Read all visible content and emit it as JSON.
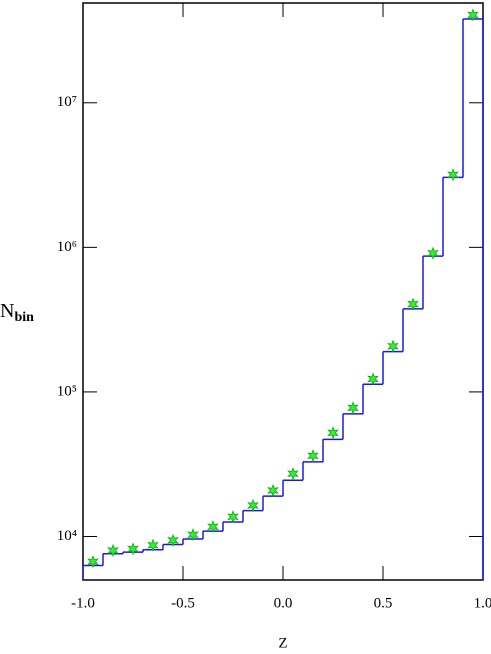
{
  "chart_data": {
    "type": "histogram",
    "xlabel": "Z",
    "ylabel_main": "N",
    "ylabel_sub": "bin",
    "log_y": true,
    "xlim": [
      -1.0,
      1.0
    ],
    "xticks": [
      {
        "value": -1.0,
        "label": "-1.0"
      },
      {
        "value": -0.5,
        "label": "-0.5"
      },
      {
        "value": 0,
        "label": "0.0"
      },
      {
        "value": 0.5,
        "label": "0.5"
      },
      {
        "value": 1.0,
        "label": "1.0"
      }
    ],
    "ylim": [
      5000,
      49000000
    ],
    "yticks": [
      {
        "value": 10000,
        "label": "10⁴"
      },
      {
        "value": 100000,
        "label": "10⁵"
      },
      {
        "value": 1000000,
        "label": "10⁶"
      },
      {
        "value": 10000000,
        "label": "10⁷"
      }
    ],
    "bins": [
      -1.0,
      -0.9,
      -0.8,
      -0.7,
      -0.6,
      -0.5,
      -0.4,
      -0.3,
      -0.2,
      -0.1,
      0.0,
      0.1,
      0.2,
      0.3,
      0.4,
      0.5,
      0.6,
      0.7,
      0.8,
      0.9,
      1.0
    ],
    "counts": [
      6300,
      7600,
      7800,
      8100,
      8800,
      9600,
      10900,
      12600,
      15100,
      19000,
      24500,
      32800,
      47000,
      70500,
      113000,
      190000,
      375000,
      870000,
      3050000,
      38000000
    ],
    "color": "#1a1adc",
    "points": {
      "color": "#33ee33",
      "x": [
        -0.95,
        -0.85,
        -0.75,
        -0.65,
        -0.55,
        -0.45,
        -0.35,
        -0.25,
        -0.15,
        -0.05,
        0.05,
        0.15,
        0.25,
        0.35,
        0.45,
        0.55,
        0.65,
        0.75,
        0.85,
        0.95
      ],
      "values": [
        6700,
        8000,
        8200,
        8700,
        9400,
        10300,
        11700,
        13700,
        16400,
        20800,
        27200,
        36200,
        52100,
        77600,
        123000,
        207000,
        405000,
        910000,
        3180000,
        40500000
      ]
    }
  }
}
